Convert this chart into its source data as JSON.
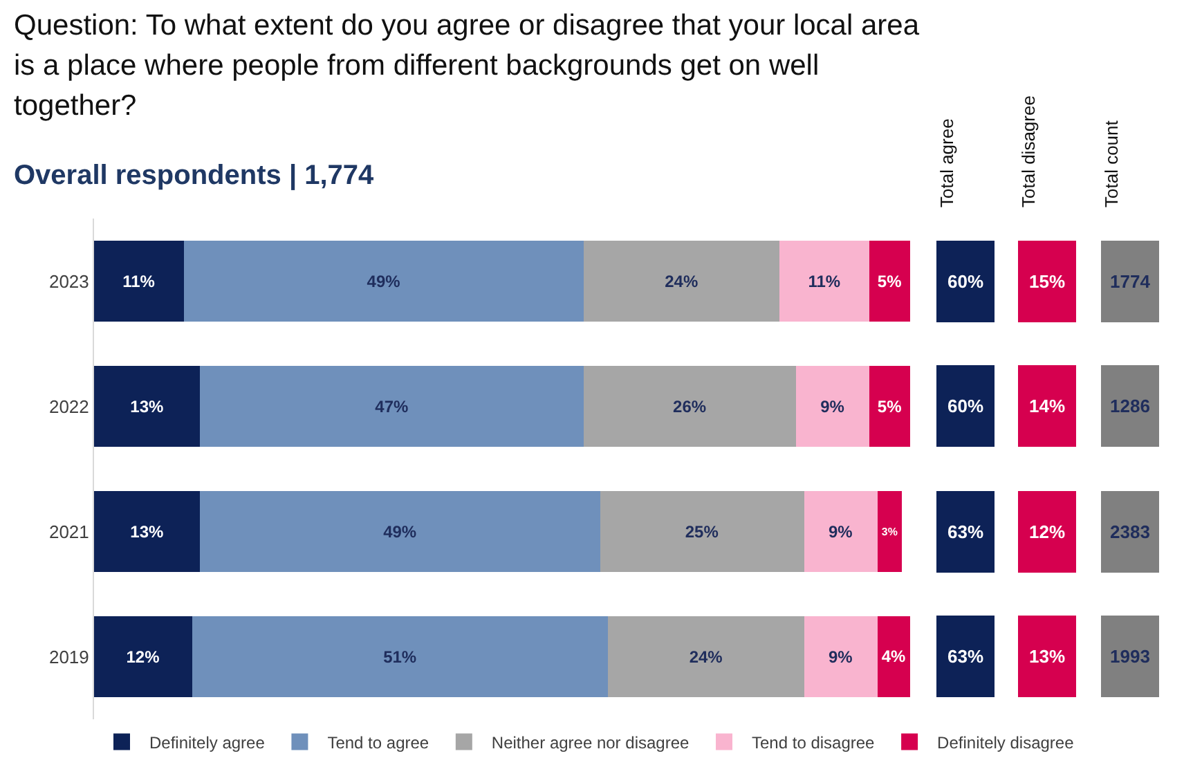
{
  "chart_data": [
    {
      "type": "bar",
      "orientation": "horizontal",
      "stacked": true,
      "title": "Question: To what extent do you agree or disagree that your local area is a place where people from different backgrounds get on well together?",
      "subtitle": "Overall respondents | 1,774",
      "categories": [
        "2023",
        "2022",
        "2021",
        "2019"
      ],
      "xlim": [
        0,
        100
      ],
      "tick_labels": "y",
      "legend": "bottom",
      "series": [
        {
          "name": "Definitely agree",
          "color": "#0d2257",
          "values": [
            11,
            13,
            13,
            12
          ],
          "value_labels": [
            "11%",
            "13%",
            "13%",
            "12%"
          ]
        },
        {
          "name": "Tend to agree",
          "color": "#6f90bb",
          "values": [
            49,
            47,
            49,
            51
          ],
          "value_labels": [
            "49%",
            "47%",
            "49%",
            "51%"
          ]
        },
        {
          "name": "Neither agree nor disagree",
          "color": "#a6a6a6",
          "values": [
            24,
            26,
            25,
            24
          ],
          "value_labels": [
            "24%",
            "26%",
            "25%",
            "24%"
          ]
        },
        {
          "name": "Tend to disagree",
          "color": "#f9b4cf",
          "values": [
            11,
            9,
            9,
            9
          ],
          "value_labels": [
            "11%",
            "9%",
            "9%",
            "9%"
          ]
        },
        {
          "name": "Definitely disagree",
          "color": "#d6004f",
          "values": [
            5,
            5,
            3,
            4
          ],
          "value_labels": [
            "5%",
            "5%",
            "3%",
            "4%"
          ]
        }
      ]
    },
    {
      "type": "other",
      "title": "Total agree",
      "values": [
        60,
        60,
        63,
        63
      ],
      "value_labels": [
        "60%",
        "60%",
        "63%",
        "63%"
      ],
      "color": "#0d2257"
    },
    {
      "type": "other",
      "title": "Total disagree",
      "values": [
        15,
        14,
        12,
        13
      ],
      "value_labels": [
        "15%",
        "14%",
        "12%",
        "13%"
      ],
      "color": "#d6004f"
    },
    {
      "type": "other",
      "title": "Total count",
      "values": [
        1774,
        1286,
        2383,
        1993
      ],
      "data_labels": true,
      "color": "#808080"
    }
  ]
}
